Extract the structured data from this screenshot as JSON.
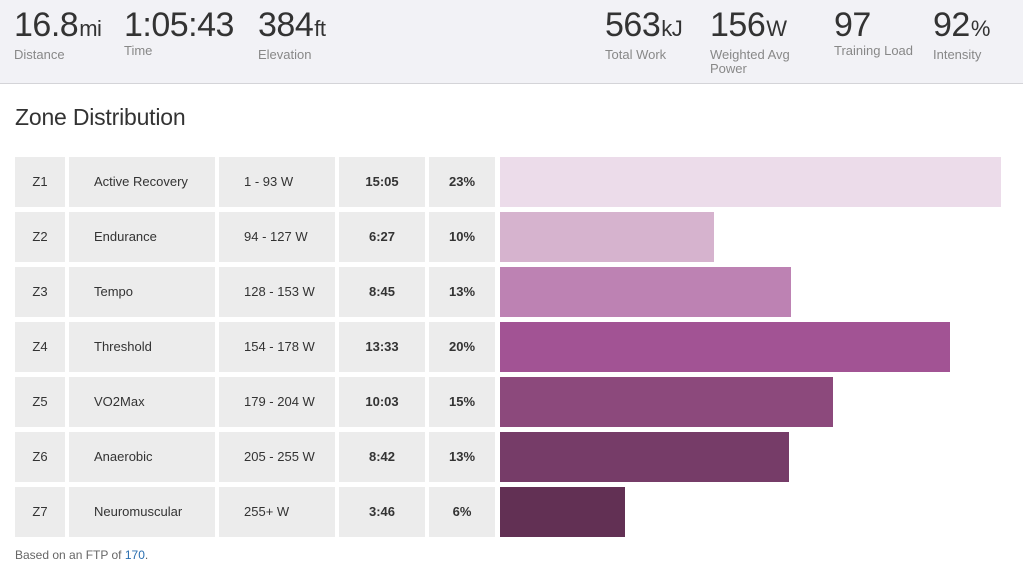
{
  "stats_left": [
    {
      "value": "16.8",
      "unit": "mi",
      "label": "Distance"
    },
    {
      "value": "1:05:43",
      "unit": "",
      "label": "Time"
    },
    {
      "value": "384",
      "unit": "ft",
      "label": "Elevation"
    }
  ],
  "stats_right": [
    {
      "value": "563",
      "unit": "kJ",
      "label": "Total Work"
    },
    {
      "value": "156",
      "unit": "W",
      "label": "Weighted Avg Power"
    },
    {
      "value": "97",
      "unit": "",
      "label": "Training Load"
    },
    {
      "value": "92",
      "unit": "%",
      "label": "Intensity"
    }
  ],
  "zone_section": {
    "title": "Zone Distribution"
  },
  "zones": [
    {
      "zone": "Z1",
      "name": "Active Recovery",
      "range": "1 - 93 W",
      "time": "15:05",
      "pct": "23%",
      "fraction": 1.0,
      "color": "#ecdcea"
    },
    {
      "zone": "Z2",
      "name": "Endurance",
      "range": "94 - 127 W",
      "time": "6:27",
      "pct": "10%",
      "fraction": 0.427,
      "color": "#d6b3ce"
    },
    {
      "zone": "Z3",
      "name": "Tempo",
      "range": "128 - 153 W",
      "time": "8:45",
      "pct": "13%",
      "fraction": 0.58,
      "color": "#bd82b3"
    },
    {
      "zone": "Z4",
      "name": "Threshold",
      "range": "154 - 178 W",
      "time": "13:33",
      "pct": "20%",
      "fraction": 0.898,
      "color": "#a25394"
    },
    {
      "zone": "Z5",
      "name": "VO2Max",
      "range": "179 - 204 W",
      "time": "10:03",
      "pct": "15%",
      "fraction": 0.665,
      "color": "#8c497c"
    },
    {
      "zone": "Z6",
      "name": "Anaerobic",
      "range": "205 - 255 W",
      "time": "8:42",
      "pct": "13%",
      "fraction": 0.577,
      "color": "#763c68"
    },
    {
      "zone": "Z7",
      "name": "Neuromuscular",
      "range": "255+ W",
      "time": "3:46",
      "pct": "6%",
      "fraction": 0.249,
      "color": "#623054"
    }
  ],
  "footnote": {
    "prefix": "Based on an FTP of ",
    "ftp": "170",
    "suffix": "."
  }
}
